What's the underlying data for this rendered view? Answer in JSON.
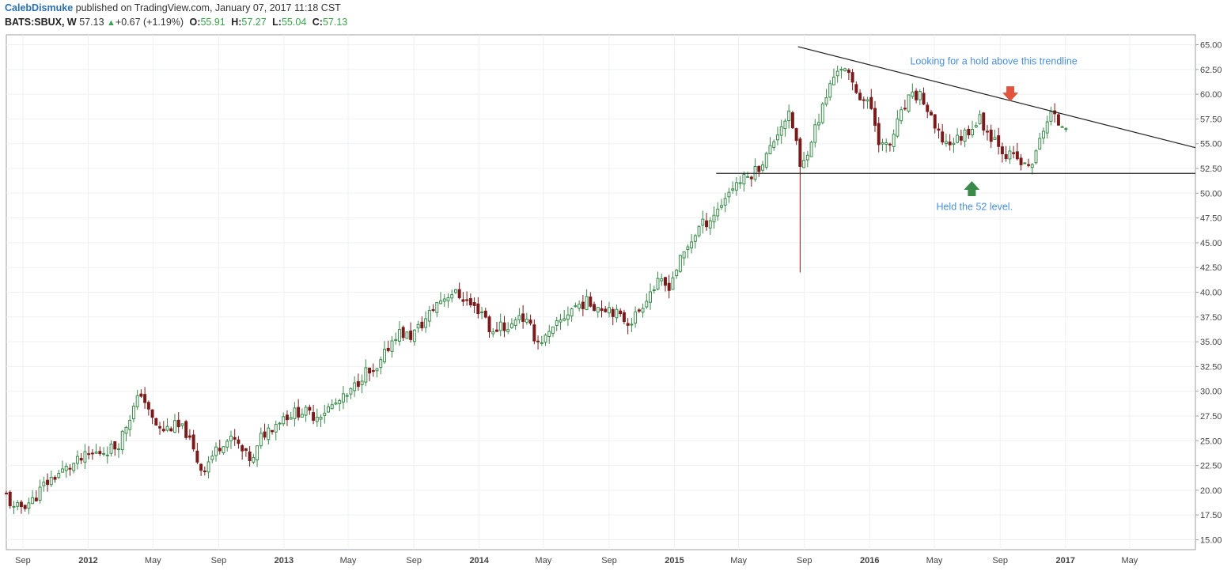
{
  "header": {
    "author": "CalebDismuke",
    "published": "published on TradingView.com, January 07, 2017 11:18 CST",
    "symbol": "BATS:SBUX, W",
    "last": "57.13",
    "change_arrow": "▲",
    "change": "+0.67 (+1.19%)",
    "open_label": "O:",
    "open": "55.91",
    "high_label": "H:",
    "high": "57.27",
    "low_label": "L:",
    "low": "55.04",
    "close_label": "C:",
    "close": "57.13"
  },
  "colors": {
    "bull": "#3a8a4a",
    "bear": "#7a1a1a",
    "annotation_text": "#4a8fdb",
    "arrow_down": "#e0533e",
    "arrow_up": "#3a8a4a",
    "grid": "#eef0f3"
  },
  "chart_data": {
    "type": "candlestick",
    "interval": "weekly",
    "x_range": [
      "2011-08-01",
      "2017-09-01"
    ],
    "ylim": [
      14,
      66
    ],
    "y_ticks": [
      "15.00",
      "17.50",
      "20.00",
      "22.50",
      "25.00",
      "27.50",
      "30.00",
      "32.50",
      "35.00",
      "37.50",
      "40.00",
      "42.50",
      "45.00",
      "47.50",
      "50.00",
      "52.50",
      "55.00",
      "57.50",
      "60.00",
      "62.50",
      "65.00"
    ],
    "x_ticks": [
      {
        "date": "2011-09-01",
        "label": "Sep"
      },
      {
        "date": "2012-01-01",
        "label": "2012"
      },
      {
        "date": "2012-05-01",
        "label": "May"
      },
      {
        "date": "2012-09-01",
        "label": "Sep"
      },
      {
        "date": "2013-01-01",
        "label": "2013"
      },
      {
        "date": "2013-05-01",
        "label": "May"
      },
      {
        "date": "2013-09-01",
        "label": "Sep"
      },
      {
        "date": "2014-01-01",
        "label": "2014"
      },
      {
        "date": "2014-05-01",
        "label": "May"
      },
      {
        "date": "2014-09-01",
        "label": "Sep"
      },
      {
        "date": "2015-01-01",
        "label": "2015"
      },
      {
        "date": "2015-05-01",
        "label": "May"
      },
      {
        "date": "2015-09-01",
        "label": "Sep"
      },
      {
        "date": "2016-01-01",
        "label": "2016"
      },
      {
        "date": "2016-05-01",
        "label": "May"
      },
      {
        "date": "2016-09-01",
        "label": "Sep"
      },
      {
        "date": "2017-01-01",
        "label": "2017"
      },
      {
        "date": "2017-05-01",
        "label": "May"
      }
    ],
    "close_path": [
      [
        "2011-08-01",
        19.5
      ],
      [
        "2011-08-15",
        18.0
      ],
      [
        "2011-09-01",
        18.5
      ],
      [
        "2011-09-20",
        19.0
      ],
      [
        "2011-10-10",
        20.5
      ],
      [
        "2011-11-01",
        21.5
      ],
      [
        "2011-12-01",
        22.5
      ],
      [
        "2012-01-01",
        23.5
      ],
      [
        "2012-02-01",
        24.0
      ],
      [
        "2012-02-25",
        24.5
      ],
      [
        "2012-03-15",
        27.0
      ],
      [
        "2012-04-10",
        30.0
      ],
      [
        "2012-04-25",
        27.5
      ],
      [
        "2012-05-15",
        26.0
      ],
      [
        "2012-06-10",
        26.5
      ],
      [
        "2012-07-01",
        26.0
      ],
      [
        "2012-07-15",
        24.0
      ],
      [
        "2012-08-01",
        22.0
      ],
      [
        "2012-08-20",
        23.5
      ],
      [
        "2012-09-10",
        25.0
      ],
      [
        "2012-10-01",
        25.0
      ],
      [
        "2012-10-20",
        23.5
      ],
      [
        "2012-11-05",
        23.0
      ],
      [
        "2012-11-20",
        25.5
      ],
      [
        "2012-12-10",
        26.5
      ],
      [
        "2013-01-01",
        27.5
      ],
      [
        "2013-02-01",
        28.0
      ],
      [
        "2013-03-01",
        27.5
      ],
      [
        "2013-04-01",
        28.5
      ],
      [
        "2013-05-01",
        29.5
      ],
      [
        "2013-06-01",
        32.0
      ],
      [
        "2013-06-20",
        31.5
      ],
      [
        "2013-07-15",
        34.5
      ],
      [
        "2013-08-01",
        36.0
      ],
      [
        "2013-08-25",
        35.5
      ],
      [
        "2013-09-20",
        37.0
      ],
      [
        "2013-10-15",
        39.0
      ],
      [
        "2013-11-10",
        40.0
      ],
      [
        "2013-12-01",
        39.5
      ],
      [
        "2013-12-20",
        38.5
      ],
      [
        "2014-01-10",
        38.0
      ],
      [
        "2014-01-25",
        35.5
      ],
      [
        "2014-02-10",
        37.0
      ],
      [
        "2014-02-25",
        36.0
      ],
      [
        "2014-03-15",
        38.0
      ],
      [
        "2014-04-05",
        36.5
      ],
      [
        "2014-04-20",
        35.0
      ],
      [
        "2014-05-10",
        35.5
      ],
      [
        "2014-06-01",
        37.0
      ],
      [
        "2014-06-25",
        38.5
      ],
      [
        "2014-07-20",
        39.0
      ],
      [
        "2014-08-15",
        38.5
      ],
      [
        "2014-09-01",
        38.5
      ],
      [
        "2014-09-20",
        37.5
      ],
      [
        "2014-10-10",
        37.0
      ],
      [
        "2014-10-25",
        38.0
      ],
      [
        "2014-11-15",
        40.0
      ],
      [
        "2014-12-05",
        41.0
      ],
      [
        "2014-12-20",
        40.5
      ],
      [
        "2015-01-10",
        43.0
      ],
      [
        "2015-01-25",
        44.5
      ],
      [
        "2015-02-15",
        46.5
      ],
      [
        "2015-03-10",
        47.5
      ],
      [
        "2015-03-25",
        48.5
      ],
      [
        "2015-04-10",
        50.0
      ],
      [
        "2015-04-25",
        51.0
      ],
      [
        "2015-05-15",
        51.5
      ],
      [
        "2015-06-05",
        52.5
      ],
      [
        "2015-06-25",
        54.0
      ],
      [
        "2015-07-15",
        56.5
      ],
      [
        "2015-08-01",
        58.0
      ],
      [
        "2015-08-15",
        56.0
      ],
      [
        "2015-08-25",
        52.0
      ],
      [
        "2015-09-10",
        55.0
      ],
      [
        "2015-10-01",
        58.0
      ],
      [
        "2015-10-20",
        61.0
      ],
      [
        "2015-11-05",
        63.0
      ],
      [
        "2015-11-20",
        62.0
      ],
      [
        "2015-12-05",
        60.5
      ],
      [
        "2015-12-20",
        59.5
      ],
      [
        "2016-01-05",
        58.5
      ],
      [
        "2016-01-20",
        55.0
      ],
      [
        "2016-02-05",
        54.5
      ],
      [
        "2016-02-25",
        57.5
      ],
      [
        "2016-03-15",
        59.5
      ],
      [
        "2016-04-05",
        60.0
      ],
      [
        "2016-04-20",
        58.0
      ],
      [
        "2016-05-05",
        56.0
      ],
      [
        "2016-05-25",
        55.0
      ],
      [
        "2016-06-15",
        55.5
      ],
      [
        "2016-07-05",
        56.5
      ],
      [
        "2016-07-25",
        57.5
      ],
      [
        "2016-08-10",
        56.0
      ],
      [
        "2016-08-25",
        55.5
      ],
      [
        "2016-09-10",
        54.0
      ],
      [
        "2016-10-01",
        53.5
      ],
      [
        "2016-10-20",
        52.5
      ],
      [
        "2016-11-05",
        53.5
      ],
      [
        "2016-11-20",
        56.5
      ],
      [
        "2016-12-05",
        58.0
      ],
      [
        "2016-12-20",
        57.0
      ],
      [
        "2017-01-05",
        57.13
      ]
    ],
    "drawings": [
      {
        "type": "trendline",
        "from": [
          "2015-08-20",
          64.8
        ],
        "to": [
          "2017-09-01",
          54.6
        ]
      },
      {
        "type": "horizontal",
        "from": [
          "2015-03-20",
          52.0
        ],
        "to": [
          "2017-09-01",
          52.0
        ]
      }
    ],
    "annotations": [
      {
        "text": "Looking for a hold above this trendline",
        "date": "2016-08-20",
        "value": 63.0
      },
      {
        "text": "Held the 52 level.",
        "date": "2016-07-15",
        "value": 48.3
      }
    ],
    "arrows": [
      {
        "direction": "down",
        "date": "2016-09-20",
        "value": 60.0
      },
      {
        "direction": "up",
        "date": "2016-07-10",
        "value": 50.5
      }
    ]
  }
}
